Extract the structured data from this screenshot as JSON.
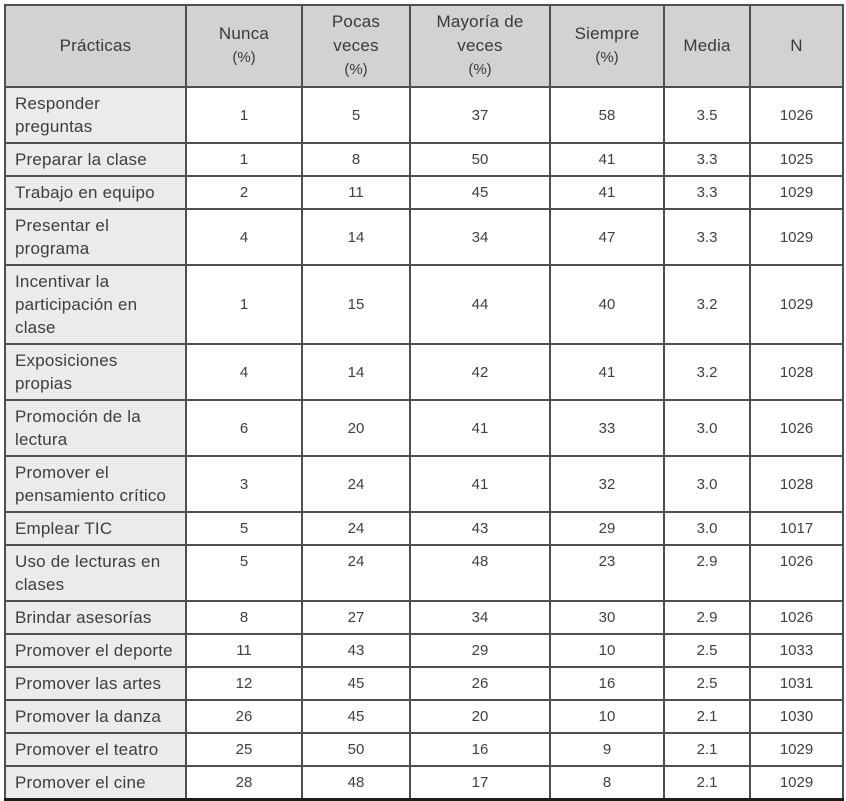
{
  "colors": {
    "header_background": "#d2d2d2",
    "first_column_background": "#ebebeb",
    "cell_background": "#ffffff",
    "border": "#4f4f4f",
    "outer_border": "#1c1c1c",
    "text": "#3e3e3e"
  },
  "table": {
    "header": [
      {
        "label": "Prácticas",
        "unit": ""
      },
      {
        "label": "Nunca",
        "unit": "(%)"
      },
      {
        "label": "Pocas\nveces",
        "unit": "(%)"
      },
      {
        "label": "Mayoría de\nveces",
        "unit": "(%)"
      },
      {
        "label": "Siempre",
        "unit": "(%)"
      },
      {
        "label": "Media",
        "unit": ""
      },
      {
        "label": "N",
        "unit": ""
      }
    ],
    "top_aligned_row_index": 9
  },
  "chart_data": {
    "type": "table",
    "title": "",
    "columns": [
      "Prácticas",
      "Nunca (%)",
      "Pocas veces (%)",
      "Mayoría de veces (%)",
      "Siempre (%)",
      "Media",
      "N"
    ],
    "rows": [
      [
        "Responder preguntas",
        1,
        5,
        37,
        58,
        "3.5",
        1026
      ],
      [
        "Preparar la clase",
        1,
        8,
        50,
        41,
        "3.3",
        1025
      ],
      [
        "Trabajo en equipo",
        2,
        11,
        45,
        41,
        "3.3",
        1029
      ],
      [
        "Presentar el programa",
        4,
        14,
        34,
        47,
        "3.3",
        1029
      ],
      [
        "Incentivar la participación en clase",
        1,
        15,
        44,
        40,
        "3.2",
        1029
      ],
      [
        "Exposiciones propias",
        4,
        14,
        42,
        41,
        "3.2",
        1028
      ],
      [
        "Promoción de la lectura",
        6,
        20,
        41,
        33,
        "3.0",
        1026
      ],
      [
        "Promover el pensamiento crítico",
        3,
        24,
        41,
        32,
        "3.0",
        1028
      ],
      [
        "Emplear TIC",
        5,
        24,
        43,
        29,
        "3.0",
        1017
      ],
      [
        "Uso de lecturas en clases",
        5,
        24,
        48,
        23,
        "2.9",
        1026
      ],
      [
        "Brindar asesorías",
        8,
        27,
        34,
        30,
        "2.9",
        1026
      ],
      [
        "Promover el deporte",
        11,
        43,
        29,
        10,
        "2.5",
        1033
      ],
      [
        "Promover las artes",
        12,
        45,
        26,
        16,
        "2.5",
        1031
      ],
      [
        "Promover la danza",
        26,
        45,
        20,
        10,
        "2.1",
        1030
      ],
      [
        "Promover el teatro",
        25,
        50,
        16,
        9,
        "2.1",
        1029
      ],
      [
        "Promover el cine",
        28,
        48,
        17,
        8,
        "2.1",
        1029
      ]
    ]
  }
}
